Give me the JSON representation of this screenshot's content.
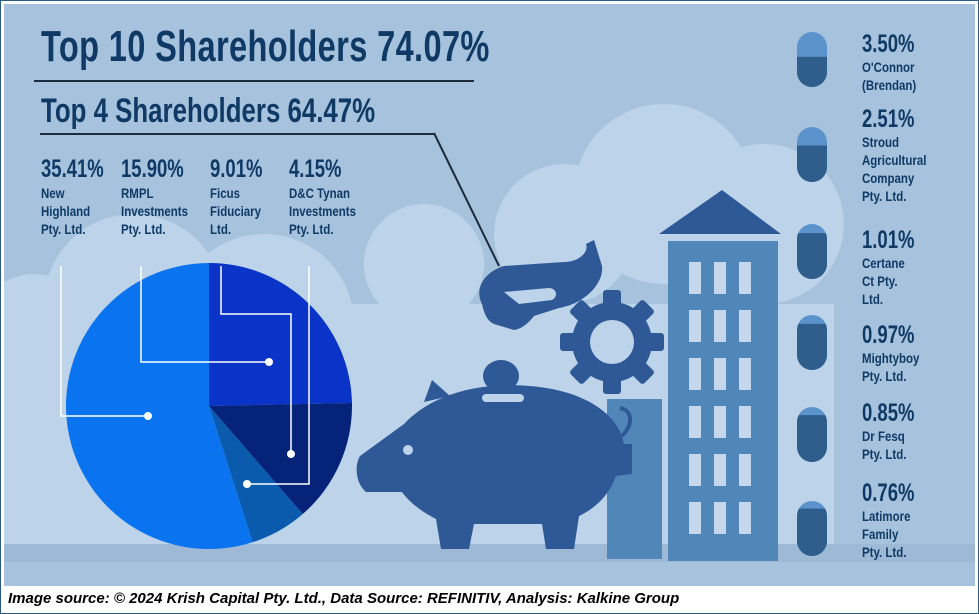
{
  "header": {
    "top10_title": "Top 10 Shareholders 74.07%",
    "top4_title": "Top 4 Shareholders 64.47%"
  },
  "chart_data": {
    "type": "pie",
    "slices": [
      {
        "label": "New Highland Pty. Ltd.",
        "value": 35.41,
        "color": "#0a74f0"
      },
      {
        "label": "RMPL Investments Pty. Ltd.",
        "value": 15.9,
        "color": "#0a34c8"
      },
      {
        "label": "Ficus Fiduciary Ltd.",
        "value": 9.01,
        "color": "#06237a"
      },
      {
        "label": "D&C Tynan Investments Pty. Ltd.",
        "value": 4.15,
        "color": "#0a5aae"
      }
    ]
  },
  "top4_labels": [
    {
      "pct": "35.41%",
      "lines": [
        "New",
        "Highland",
        "Pty. Ltd."
      ]
    },
    {
      "pct": "15.90%",
      "lines": [
        "RMPL",
        "Investments",
        "Pty. Ltd."
      ]
    },
    {
      "pct": "9.01%",
      "lines": [
        "Ficus",
        "Fiduciary",
        "Ltd."
      ]
    },
    {
      "pct": "4.15%",
      "lines": [
        "D&C Tynan",
        "Investments",
        "Pty. Ltd."
      ]
    }
  ],
  "other_holders": [
    {
      "pct": "3.50%",
      "value": 3.5,
      "lines": [
        "O'Connor",
        "(Brendan)"
      ]
    },
    {
      "pct": "2.51%",
      "value": 2.51,
      "lines": [
        "Stroud",
        "Agricultural",
        "Company",
        "Pty. Ltd."
      ]
    },
    {
      "pct": "1.01%",
      "value": 1.01,
      "lines": [
        "Certane",
        "Ct Pty.",
        "Ltd."
      ]
    },
    {
      "pct": "0.97%",
      "value": 0.97,
      "lines": [
        "Mightyboy",
        "Pty. Ltd."
      ]
    },
    {
      "pct": "0.85%",
      "value": 0.85,
      "lines": [
        "Dr Fesq",
        "Pty. Ltd."
      ]
    },
    {
      "pct": "0.76%",
      "value": 0.76,
      "lines": [
        "Latimore",
        "Family",
        "Pty. Ltd."
      ]
    }
  ],
  "footer": {
    "source": "Image source: © 2024 Krish Capital Pty. Ltd., Data Source: REFINITIV, Analysis: Kalkine Group"
  },
  "colors": {
    "background": "#a6c2dd",
    "cloud": "#bcd3ea",
    "ground": "#9db9d6",
    "illustration": "#2f5996",
    "building": "#5187b8",
    "capsule_top": "#5b94cd",
    "capsule_bottom": "#2f5e8d",
    "text": "#0f3a66"
  },
  "icons": [
    "hand-icon",
    "coin-icon",
    "gear-icon",
    "piggy-bank-icon",
    "building-icon",
    "capsule-icon"
  ]
}
